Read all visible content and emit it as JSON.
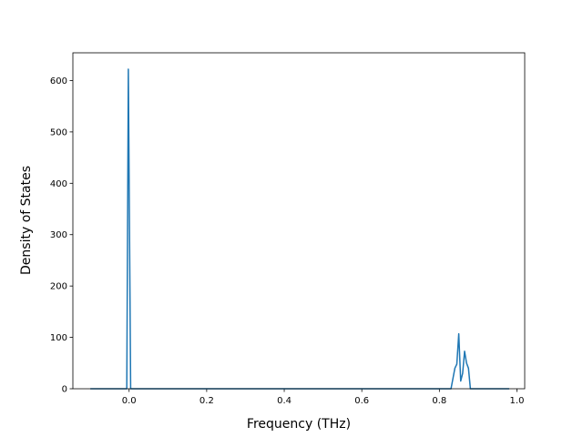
{
  "chart_data": {
    "type": "line",
    "x_label": "Frequency (THz)",
    "y_label": "Density of States",
    "x": [
      -0.1,
      -0.006,
      -0.002,
      0.004,
      0.83,
      0.84,
      0.845,
      0.85,
      0.855,
      0.86,
      0.865,
      0.87,
      0.875,
      0.88,
      0.98
    ],
    "series": [
      {
        "color": "#1f77b4",
        "values": [
          0,
          0,
          622,
          0,
          0,
          40,
          48,
          107,
          15,
          30,
          73,
          50,
          40,
          0,
          0
        ]
      }
    ],
    "xlim": [
      -0.145,
      1.02
    ],
    "ylim": [
      0,
      654
    ],
    "xticks": [
      {
        "value": 0,
        "label": "0.0"
      },
      0.2,
      0.4,
      0.6,
      0.8,
      {
        "value": 1,
        "label": "1.0"
      }
    ],
    "yticks": [
      0,
      100,
      200,
      300,
      400,
      500,
      600
    ]
  }
}
